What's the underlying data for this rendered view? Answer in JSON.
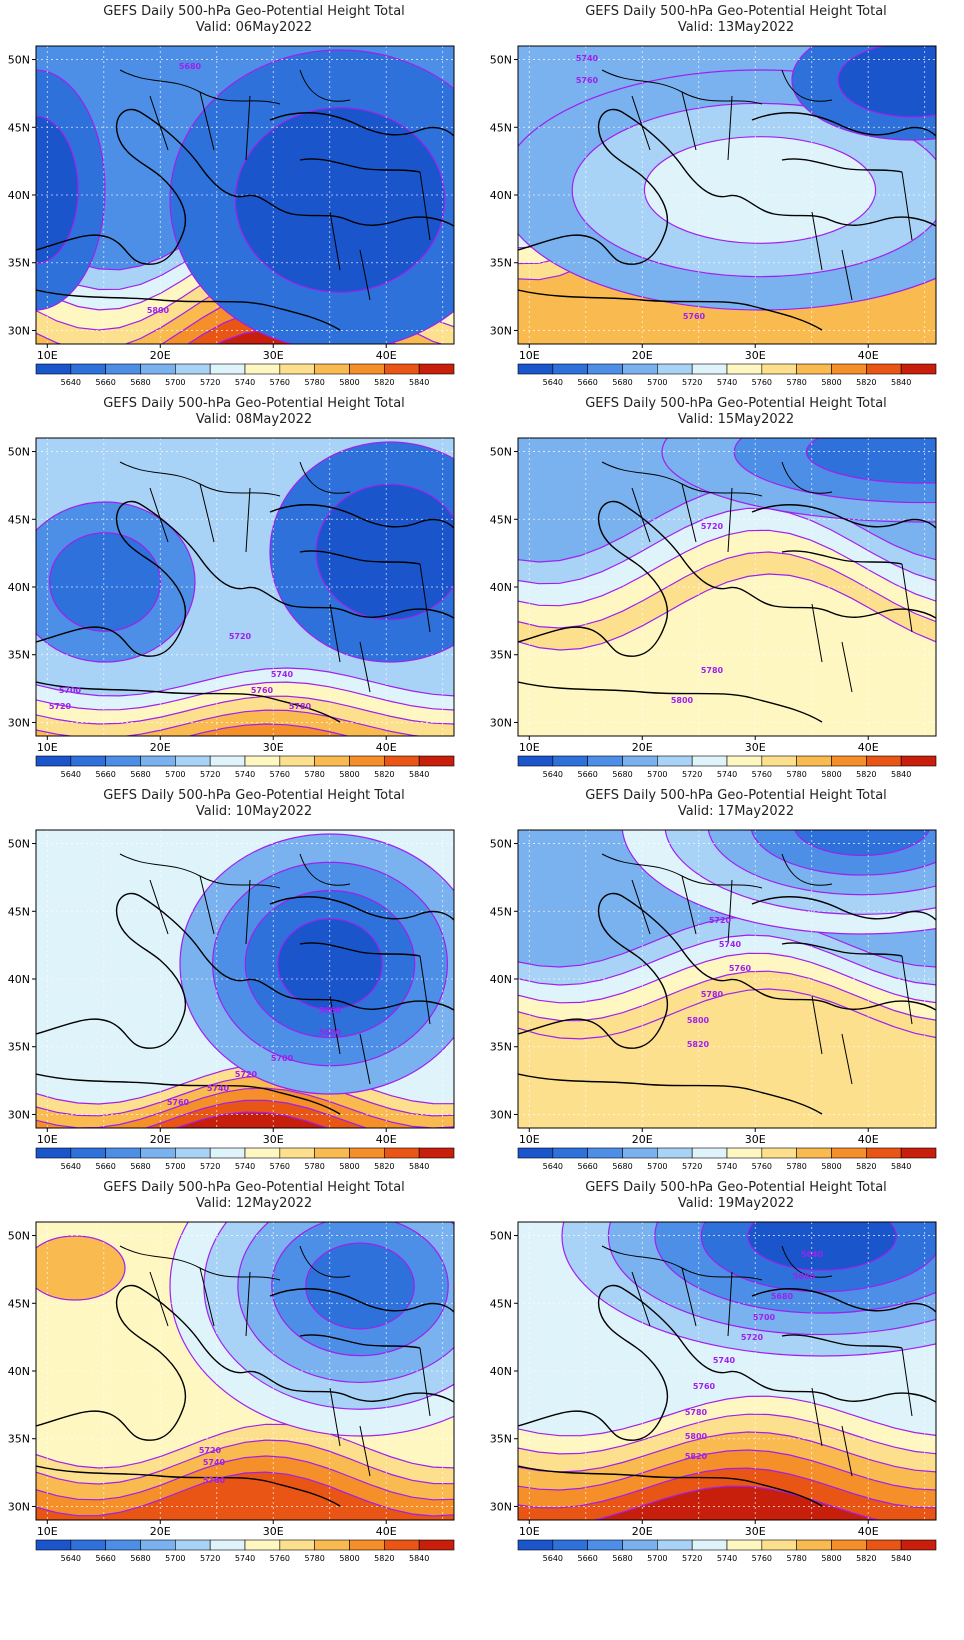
{
  "title": "GEFS Daily 500-hPa Geo-Potential Height Total",
  "valid_prefix": "Valid: ",
  "lon_labels": [
    "10E",
    "20E",
    "30E",
    "40E"
  ],
  "lat_labels": [
    "50N",
    "45N",
    "40N",
    "35N",
    "30N"
  ],
  "colorbar_levels": [
    "5640",
    "5660",
    "5680",
    "5700",
    "5720",
    "5740",
    "5760",
    "5780",
    "5800",
    "5820",
    "5840"
  ],
  "colorbar_colors": [
    "#1a55cc",
    "#2e71db",
    "#4d8fe6",
    "#7ab1ef",
    "#a9d3f6",
    "#dff3fb",
    "#fff7c2",
    "#fde08d",
    "#f9ba50",
    "#f58f2a",
    "#e85514",
    "#c81e0c"
  ],
  "contour_color": "#a020f0",
  "panels": [
    {
      "valid": "06May2022",
      "contour_labels": [
        "5680",
        "5800"
      ]
    },
    {
      "valid": "13May2022",
      "contour_labels": [
        "5740",
        "5760",
        "5760"
      ]
    },
    {
      "valid": "08May2022",
      "contour_labels": [
        "5720",
        "5740",
        "5760",
        "5780",
        "5700",
        "5720"
      ]
    },
    {
      "valid": "15May2022",
      "contour_labels": [
        "5720",
        "5780",
        "5800"
      ]
    },
    {
      "valid": "10May2022",
      "contour_labels": [
        "5660",
        "5680",
        "5700",
        "5720",
        "5740",
        "5760"
      ]
    },
    {
      "valid": "17May2022",
      "contour_labels": [
        "5720",
        "5740",
        "5760",
        "5780",
        "5800",
        "5820"
      ]
    },
    {
      "valid": "12May2022",
      "contour_labels": [
        "5720",
        "5740",
        "5760"
      ]
    },
    {
      "valid": "19May2022",
      "contour_labels": [
        "5640",
        "5660",
        "5680",
        "5700",
        "5720",
        "5740",
        "5760",
        "5780",
        "5800",
        "5820"
      ]
    }
  ]
}
